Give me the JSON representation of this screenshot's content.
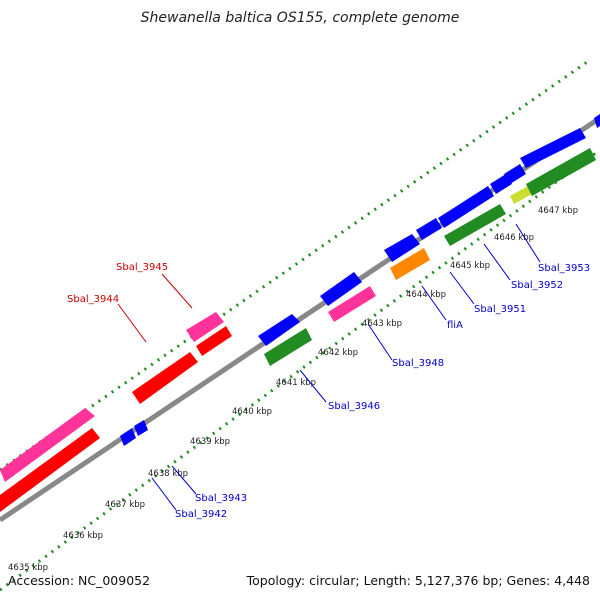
{
  "title": "Shewanella baltica OS155, complete genome",
  "footer": {
    "accession": "Accession: NC_009052",
    "summary": "Topology: circular; Length: 5,127,376 bp; Genes: 4,448"
  },
  "colors": {
    "background": "#ffffff",
    "backbone": "#888888",
    "dots": "#228B22",
    "red_label": "#cc0000",
    "blue_label": "#0000cc",
    "red_gene": "#ff0000",
    "pink_gene": "#ff3399",
    "blue_gene": "#0000ff",
    "green_gene": "#228B22",
    "orange_gene": "#ff8800",
    "lime_gene": "#ccdd33"
  },
  "scale_labels": [
    "4635 kbp",
    "4636 kbp",
    "4637 kbp",
    "4638 kbp",
    "4639 kbp",
    "4640 kbp",
    "4641 kbp",
    "4642 kbp",
    "4643 kbp",
    "4644 kbp",
    "4645 kbp",
    "4646 kbp",
    "4647 kbp"
  ],
  "red_labels": [
    "Sbal_3944",
    "Sbal_3945"
  ],
  "blue_labels": [
    "Sbal_3942",
    "Sbal_3943",
    "Sbal_3946",
    "Sbal_3948",
    "fliA",
    "Sbal_3951",
    "Sbal_3952",
    "Sbal_3953"
  ]
}
